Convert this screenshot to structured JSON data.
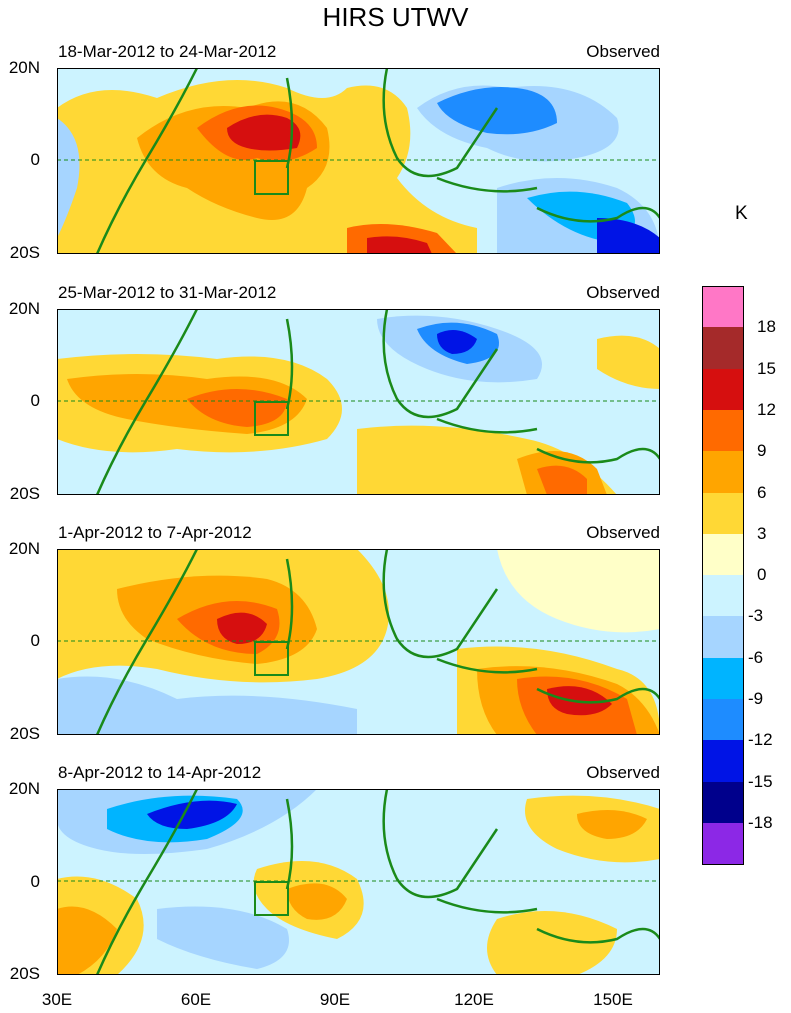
{
  "title": "HIRS UTWV",
  "unit": "K",
  "panels": [
    {
      "period": "18-Mar-2012 to 24-Mar-2012",
      "tag": "Observed"
    },
    {
      "period": "25-Mar-2012 to 31-Mar-2012",
      "tag": "Observed"
    },
    {
      "period": "1-Apr-2012 to 7-Apr-2012",
      "tag": "Observed"
    },
    {
      "period": "8-Apr-2012 to 14-Apr-2012",
      "tag": "Observed"
    }
  ],
  "lat_labels": [
    "20N",
    "0",
    "20S"
  ],
  "lon_labels": [
    "30E",
    "60E",
    "90E",
    "120E",
    "150E"
  ],
  "colorbar": {
    "labels": [
      "18",
      "15",
      "12",
      "9",
      "6",
      "3",
      "0",
      "-3",
      "-6",
      "-9",
      "-12",
      "-15",
      "-18"
    ],
    "colors": [
      "#ff77c6",
      "#a52a2a",
      "#d60f0f",
      "#ff6a00",
      "#ffa500",
      "#ffd835",
      "#ffffc8",
      "#ccf3ff",
      "#a6d5ff",
      "#00b4ff",
      "#1e8cff",
      "#0014e6",
      "#00008c",
      "#8c28e6"
    ]
  },
  "colors": {
    "coast": "#1a8a1a",
    "equator": "#1a8a1a"
  }
}
